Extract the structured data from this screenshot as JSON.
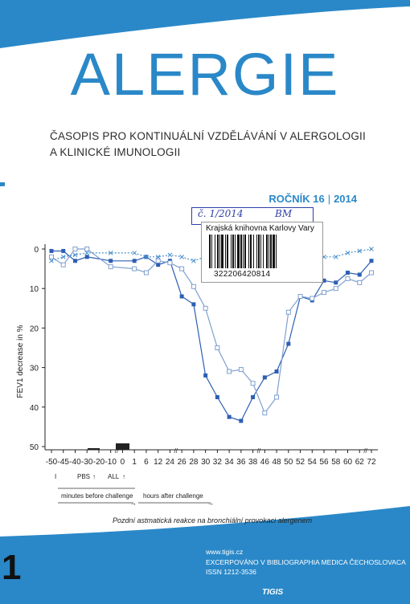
{
  "cover": {
    "title": "ALERGIE",
    "subtitle_line1": "ČASOPIS PRO KONTINUÁLNÍ VZDĚLÁVÁNÍ V ALERGOLOGII",
    "subtitle_line2": "A KLINICKÉ IMUNOLOGII",
    "volume_label": "ROČNÍK 16",
    "volume_year": "2014",
    "issue_number": "1",
    "accent_color": "#2a88c8"
  },
  "stamp": {
    "handwritten_left": "č. 1/2014",
    "handwritten_right": "BM",
    "library": "Krajská knihovna Karlovy Vary",
    "barcode_number": "322206420814"
  },
  "figure": {
    "caption": "Pozdní astmatická reakce na bronchiální provokaci alergenem",
    "pbs_label": "PBS",
    "all_label": "ALL",
    "minutes_label": "minutes before challenge",
    "hours_label": "hours after challenge",
    "small_left_mark": "I"
  },
  "chart_data": {
    "type": "line",
    "title": "",
    "xlabel": "",
    "ylabel": "FEV1 decrease in %",
    "ylim": [
      0,
      50
    ],
    "y_inverted": true,
    "y_ticks": [
      0,
      10,
      20,
      30,
      40,
      50
    ],
    "x_tick_labels": [
      "-50",
      "-45",
      "-40",
      "-30",
      "-20",
      "-10",
      "0",
      "1",
      "6",
      "12",
      "24",
      "26",
      "28",
      "30",
      "32",
      "34",
      "36",
      "38",
      "46",
      "48",
      "50",
      "52",
      "54",
      "56",
      "58",
      "60",
      "62",
      "72"
    ],
    "series": [
      {
        "marker": "filled-square",
        "color": "#2d5fb3",
        "points": [
          [
            "-50",
            0.5
          ],
          [
            "-45",
            0.5
          ],
          [
            "-40",
            3
          ],
          [
            "-30",
            2
          ],
          [
            "-10",
            3
          ],
          [
            "1",
            3
          ],
          [
            "6",
            2
          ],
          [
            "12",
            4
          ],
          [
            "24",
            3
          ],
          [
            "26",
            12
          ],
          [
            "28",
            14
          ],
          [
            "30",
            32
          ],
          [
            "32",
            37.5
          ],
          [
            "34",
            42.5
          ],
          [
            "36",
            43.5
          ],
          [
            "38",
            37.5
          ],
          [
            "46",
            32.5
          ],
          [
            "48",
            31
          ],
          [
            "50",
            24
          ],
          [
            "52",
            12
          ],
          [
            "54",
            13
          ],
          [
            "56",
            8
          ],
          [
            "58",
            8.5
          ],
          [
            "60",
            6
          ],
          [
            "62",
            6.5
          ],
          [
            "72",
            3
          ]
        ]
      },
      {
        "marker": "open-square",
        "color": "#7fa0cf",
        "points": [
          [
            "-50",
            2
          ],
          [
            "-45",
            4
          ],
          [
            "-40",
            0
          ],
          [
            "-30",
            0
          ],
          [
            "-10",
            4.5
          ],
          [
            "1",
            5
          ],
          [
            "6",
            6
          ],
          [
            "12",
            3
          ],
          [
            "24",
            3.5
          ],
          [
            "26",
            5
          ],
          [
            "28",
            9.5
          ],
          [
            "30",
            15
          ],
          [
            "32",
            25
          ],
          [
            "34",
            31
          ],
          [
            "36",
            30.5
          ],
          [
            "38",
            34
          ],
          [
            "46",
            41.5
          ],
          [
            "48",
            37.5
          ],
          [
            "50",
            16
          ],
          [
            "52",
            12
          ],
          [
            "54",
            12.5
          ],
          [
            "56",
            11
          ],
          [
            "58",
            10
          ],
          [
            "60",
            7.5
          ],
          [
            "62",
            8.5
          ],
          [
            "72",
            6
          ]
        ]
      },
      {
        "marker": "cross",
        "color": "#4a90cc",
        "style": "dotted",
        "points": [
          [
            "-50",
            3
          ],
          [
            "-45",
            2
          ],
          [
            "-40",
            1.5
          ],
          [
            "-30",
            1
          ],
          [
            "-10",
            1
          ],
          [
            "1",
            1
          ],
          [
            "6",
            2
          ],
          [
            "12",
            2
          ],
          [
            "24",
            1.5
          ],
          [
            "26",
            2
          ],
          [
            "28",
            3
          ],
          [
            "30",
            2
          ],
          [
            "32",
            2
          ],
          [
            "34",
            1.5
          ],
          [
            "36",
            2
          ],
          [
            "38",
            2.5
          ],
          [
            "46",
            2
          ],
          [
            "48",
            1.5
          ],
          [
            "50",
            2
          ],
          [
            "52",
            1
          ],
          [
            "54",
            1.5
          ],
          [
            "56",
            2
          ],
          [
            "58",
            2
          ],
          [
            "60",
            1
          ],
          [
            "62",
            0.5
          ],
          [
            "72",
            0
          ]
        ]
      }
    ],
    "annotations": {
      "pbs_bar_x": "-30 to -20",
      "allergen_bar_x": "-10 to 0"
    }
  }
}
